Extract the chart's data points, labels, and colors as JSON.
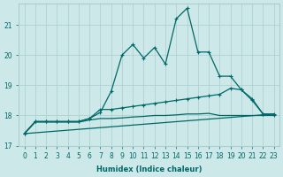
{
  "xlabel": "Humidex (Indice chaleur)",
  "background_color": "#cce8e8",
  "grid_color": "#aacece",
  "line_color": "#006868",
  "xlim": [
    -0.5,
    23.5
  ],
  "ylim": [
    17.0,
    21.7
  ],
  "yticks": [
    17,
    18,
    19,
    20,
    21
  ],
  "xticks": [
    0,
    1,
    2,
    3,
    4,
    5,
    6,
    7,
    8,
    9,
    10,
    11,
    12,
    13,
    14,
    15,
    16,
    17,
    18,
    19,
    20,
    21,
    22,
    23
  ],
  "series": [
    {
      "x": [
        0,
        1,
        2,
        3,
        4,
        5,
        6,
        7,
        8,
        9,
        10,
        11,
        12,
        13,
        14,
        15,
        16,
        17,
        18,
        19,
        20,
        21,
        22,
        23
      ],
      "y": [
        17.4,
        17.8,
        17.8,
        17.8,
        17.8,
        17.8,
        17.9,
        18.1,
        18.8,
        20.0,
        20.35,
        19.9,
        20.25,
        19.7,
        21.2,
        21.55,
        20.1,
        20.1,
        19.3,
        19.3,
        18.85,
        18.55,
        18.05,
        18.05
      ],
      "marker": "+"
    },
    {
      "x": [
        0,
        1,
        2,
        3,
        4,
        5,
        6,
        7,
        8,
        9,
        10,
        11,
        12,
        13,
        14,
        15,
        16,
        17,
        18,
        19,
        20,
        21,
        22,
        23
      ],
      "y": [
        17.4,
        17.8,
        17.8,
        17.8,
        17.8,
        17.8,
        17.9,
        18.2,
        18.2,
        18.25,
        18.3,
        18.35,
        18.4,
        18.45,
        18.5,
        18.55,
        18.6,
        18.65,
        18.7,
        18.9,
        18.85,
        18.5,
        18.05,
        18.0
      ],
      "marker": "+"
    },
    {
      "x": [
        0,
        1,
        2,
        3,
        4,
        5,
        6,
        7,
        8,
        9,
        10,
        11,
        12,
        13,
        14,
        15,
        16,
        17,
        18,
        19,
        20,
        21,
        22,
        23
      ],
      "y": [
        17.4,
        17.78,
        17.78,
        17.78,
        17.78,
        17.78,
        17.85,
        17.9,
        17.9,
        17.92,
        17.95,
        17.97,
        18.0,
        18.0,
        18.02,
        18.05,
        18.05,
        18.07,
        18.0,
        18.0,
        18.0,
        18.0,
        18.0,
        18.0
      ],
      "marker": null
    },
    {
      "x": [
        0,
        23
      ],
      "y": [
        17.4,
        18.05
      ],
      "marker": null
    }
  ]
}
